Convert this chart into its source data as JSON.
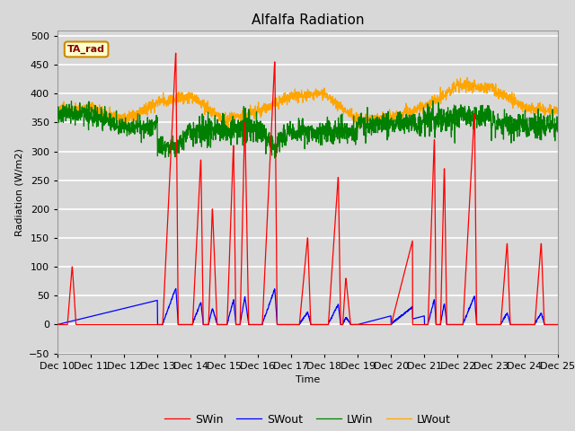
{
  "title": "Alfalfa Radiation",
  "xlabel": "Time",
  "ylabel": "Radiation (W/m2)",
  "ylim": [
    -50,
    510
  ],
  "bg_color": "#d8d8d8",
  "grid_color": "white",
  "annotation_text": "TA_rad",
  "annotation_bg": "#ffffcc",
  "annotation_border": "#cc8800",
  "legend_entries": [
    "SWin",
    "SWout",
    "LWin",
    "LWout"
  ],
  "line_colors": [
    "red",
    "blue",
    "green",
    "orange"
  ],
  "tick_labels": [
    "Dec 10",
    "Dec 11",
    "Dec 12",
    "Dec 13",
    "Dec 14",
    "Dec 15",
    "Dec 16",
    "Dec 17",
    "Dec 18",
    "Dec 19",
    "Dec 20",
    "Dec 21",
    "Dec 22",
    "Dec 23",
    "Dec 24",
    "Dec 25"
  ],
  "n_days": 15,
  "ppd": 144
}
